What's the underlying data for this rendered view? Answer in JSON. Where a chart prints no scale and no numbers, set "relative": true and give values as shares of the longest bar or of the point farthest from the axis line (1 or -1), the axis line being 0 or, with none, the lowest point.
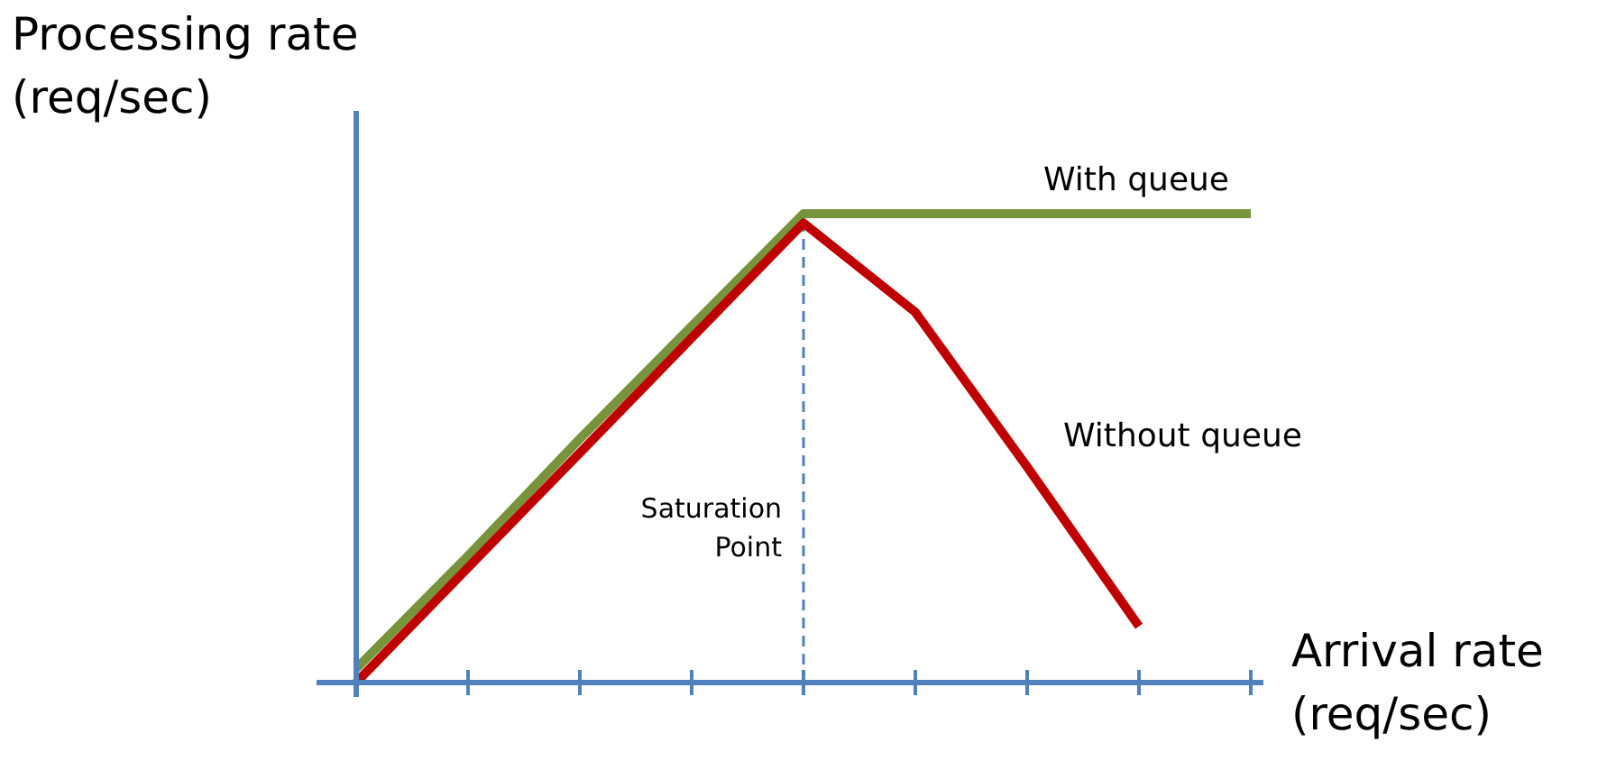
{
  "chart_data": {
    "type": "line",
    "relative": true,
    "xlabel": "Arrival rate (req/sec)",
    "ylabel": "Processing rate (req/sec)",
    "categories": [
      null,
      null,
      null,
      null,
      null,
      null,
      null,
      null,
      null
    ],
    "series": [
      {
        "name": "With queue",
        "color": "#77933c",
        "values": [
          0.03,
          0.27,
          0.52,
          0.76,
          1,
          1,
          1,
          1,
          1
        ]
      },
      {
        "name": "Without queue",
        "color": "#c00000",
        "values": [
          0,
          0.245,
          0.49,
          0.735,
          0.98,
          0.79,
          0.46,
          0.12,
          null
        ]
      }
    ],
    "ref_lines": [
      {
        "axis": "x",
        "label": "Saturation Point",
        "color": "#4f81bd",
        "line_style": "dashed"
      }
    ],
    "grid": false,
    "marker": "none",
    "line_style": "solid"
  }
}
